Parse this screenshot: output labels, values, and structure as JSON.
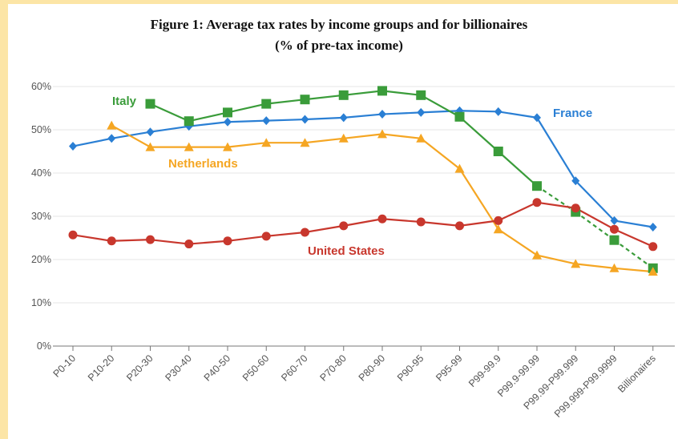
{
  "title_line1": "Figure 1: Average tax rates by income groups and for billionaires",
  "title_line2": "(% of pre-tax income)",
  "chart_data": {
    "type": "line",
    "categories": [
      "P0-10",
      "P10-20",
      "P20-30",
      "P30-40",
      "P40-50",
      "P50-60",
      "P60-70",
      "P70-80",
      "P80-90",
      "P90-95",
      "P95-99",
      "P99-99.9",
      "P99.9-99.99",
      "P99.99-P99.999",
      "P99.999-P99.9999",
      "Billionaires"
    ],
    "ylim": [
      0,
      60
    ],
    "yticks": [
      0,
      10,
      20,
      30,
      40,
      50,
      60
    ],
    "ytick_labels": [
      "0%",
      "10%",
      "20%",
      "30%",
      "40%",
      "50%",
      "60%"
    ],
    "grid": true,
    "series": [
      {
        "name": "France",
        "color": "#2a7fd4",
        "marker": "diamond",
        "values": [
          46.2,
          48,
          49.5,
          50.8,
          51.8,
          52.1,
          52.4,
          52.8,
          53.6,
          54,
          54.4,
          54.2,
          52.8,
          38.2,
          29,
          27.5
        ]
      },
      {
        "name": "Italy",
        "color": "#3a9c3a",
        "marker": "square",
        "values": [
          null,
          null,
          56,
          52,
          54,
          56,
          57,
          58,
          59,
          58,
          53,
          45,
          37,
          31,
          24.5,
          18
        ],
        "dashed_from_index": 12
      },
      {
        "name": "Netherlands",
        "color": "#f5a623",
        "marker": "triangle",
        "values": [
          null,
          51,
          46,
          46,
          46,
          47,
          47,
          48,
          49,
          48,
          41,
          27,
          21,
          19,
          18,
          17.2
        ]
      },
      {
        "name": "United States",
        "color": "#c8372d",
        "marker": "circle",
        "values": [
          25.7,
          24.3,
          24.6,
          23.6,
          24.3,
          25.4,
          26.3,
          27.8,
          29.4,
          28.7,
          27.8,
          29,
          33.2,
          31.9,
          27,
          23
        ]
      }
    ]
  }
}
